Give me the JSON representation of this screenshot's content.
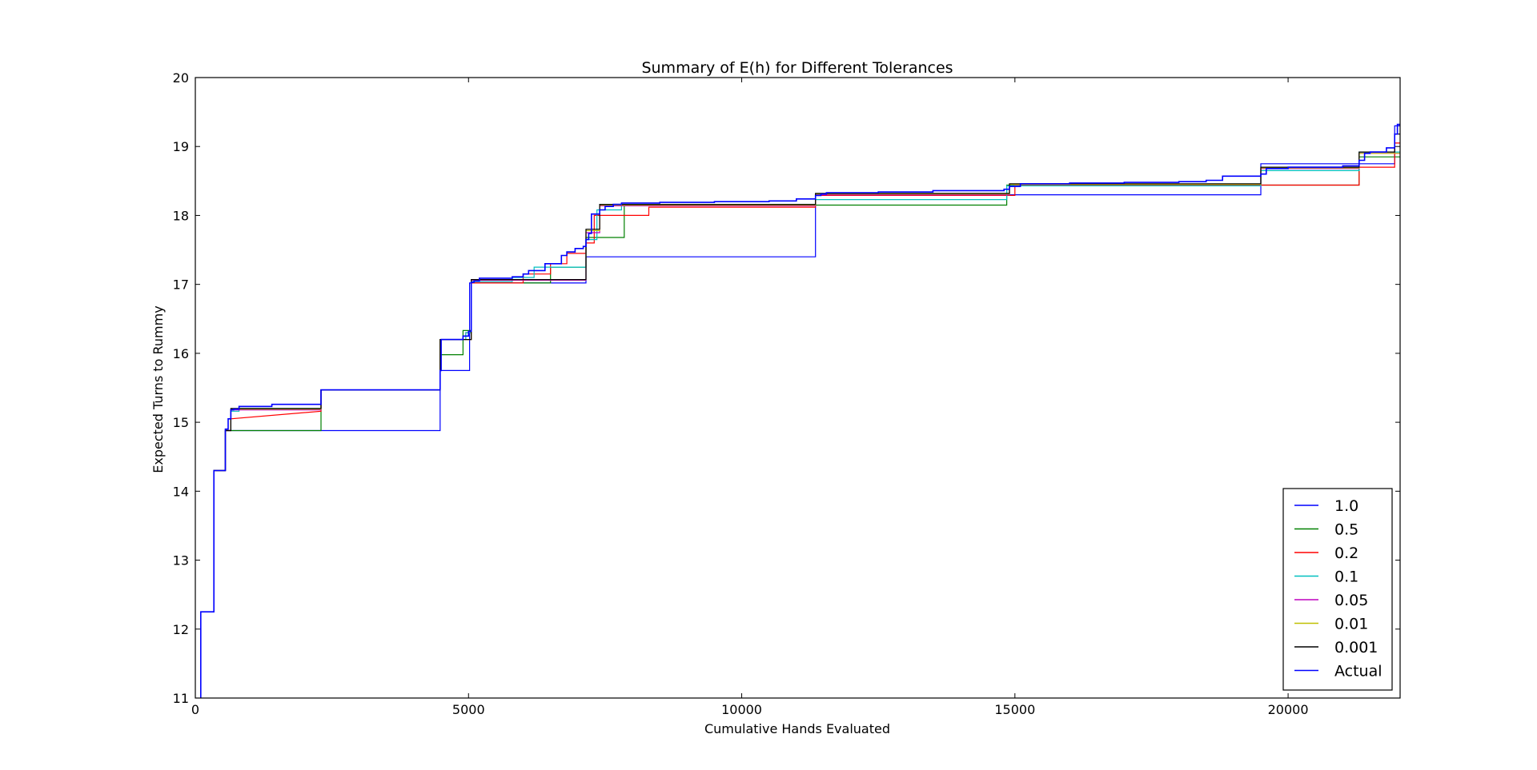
{
  "chart_data": {
    "type": "line",
    "title": "Summary of E(h) for Different Tolerances",
    "xlabel": "Cumulative Hands Evaluated",
    "ylabel": "Expected Turns to Rummy",
    "xlim": [
      0,
      22050
    ],
    "ylim": [
      11,
      20
    ],
    "xticks": [
      0,
      5000,
      10000,
      15000,
      20000
    ],
    "yticks": [
      11,
      12,
      13,
      14,
      15,
      16,
      17,
      18,
      19,
      20
    ],
    "legend_position": "lower-right",
    "grid": false,
    "step": "post",
    "series": [
      {
        "name": "1.0",
        "color": "#0000ff",
        "x": [
          100,
          100,
          340,
          340,
          550,
          550,
          4480,
          4480,
          5020,
          5020,
          7150,
          7150,
          11350,
          11350,
          19500,
          19500,
          21950,
          21950,
          22050
        ],
        "y": [
          11.0,
          12.25,
          12.25,
          14.3,
          14.3,
          14.88,
          14.88,
          15.75,
          15.75,
          17.02,
          17.02,
          17.4,
          17.4,
          18.3,
          18.3,
          18.75,
          18.75,
          19.3,
          19.3
        ]
      },
      {
        "name": "0.5",
        "color": "#008000",
        "x": [
          100,
          100,
          340,
          340,
          550,
          550,
          2300,
          2300,
          4480,
          4480,
          4900,
          4900,
          5050,
          5050,
          6500,
          6500,
          7150,
          7150,
          7850,
          7850,
          11350,
          11350,
          14850,
          14850,
          21300,
          21300,
          22050
        ],
        "y": [
          11.0,
          12.25,
          12.25,
          14.3,
          14.3,
          14.88,
          14.88,
          15.47,
          15.47,
          15.98,
          15.98,
          16.33,
          16.33,
          17.02,
          17.02,
          17.25,
          17.25,
          17.68,
          17.68,
          18.15,
          18.15,
          18.15,
          18.15,
          18.44,
          18.44,
          18.85,
          18.85
        ]
      },
      {
        "name": "0.2",
        "color": "#ff0000",
        "x": [
          100,
          100,
          340,
          340,
          550,
          550,
          650,
          650,
          2300,
          2300,
          4480,
          4480,
          4950,
          4950,
          5050,
          5050,
          5700,
          5700,
          6000,
          6000,
          6500,
          6500,
          6800,
          6800,
          7150,
          7150,
          7300,
          7300,
          8300,
          8300,
          11350,
          11350,
          15000,
          15000,
          21300,
          21300,
          21950,
          21950,
          22050
        ],
        "y": [
          11.0,
          12.25,
          12.25,
          14.3,
          14.3,
          14.88,
          14.88,
          15.05,
          15.16,
          15.47,
          15.47,
          16.2,
          16.2,
          16.3,
          16.3,
          17.02,
          17.02,
          17.02,
          17.02,
          17.15,
          17.15,
          17.3,
          17.3,
          17.45,
          17.45,
          17.6,
          17.6,
          18.0,
          18.0,
          18.12,
          18.12,
          18.29,
          18.29,
          18.44,
          18.44,
          18.7,
          18.7,
          19.05,
          19.05
        ]
      },
      {
        "name": "0.1",
        "color": "#00bfbf",
        "x": [
          100,
          100,
          340,
          340,
          550,
          550,
          650,
          650,
          800,
          800,
          2300,
          2300,
          4480,
          4480,
          4950,
          4950,
          5050,
          5050,
          5800,
          5800,
          6200,
          6200,
          7150,
          7150,
          7350,
          7350,
          7800,
          7800,
          11350,
          11350,
          14850,
          14850,
          19500,
          19500,
          21300,
          21300,
          22050
        ],
        "y": [
          11.0,
          12.25,
          12.25,
          14.3,
          14.3,
          14.88,
          14.88,
          15.16,
          15.16,
          15.2,
          15.2,
          15.47,
          15.47,
          16.2,
          16.2,
          16.3,
          16.3,
          17.04,
          17.04,
          17.1,
          17.1,
          17.25,
          17.25,
          17.65,
          17.65,
          18.08,
          18.08,
          18.16,
          18.16,
          18.23,
          18.23,
          18.43,
          18.43,
          18.65,
          18.65,
          18.92,
          18.92
        ]
      },
      {
        "name": "0.05",
        "color": "#bf00bf",
        "x": [
          100,
          100,
          340,
          340,
          550,
          550,
          650,
          650,
          2300,
          2300,
          4480,
          4480,
          5050,
          5050,
          7150,
          7150,
          7400,
          7400,
          11350,
          11350,
          14900,
          14900,
          19500,
          19500,
          21300,
          21300,
          22050
        ],
        "y": [
          11.0,
          12.25,
          12.25,
          14.3,
          14.3,
          14.88,
          14.88,
          15.18,
          15.18,
          15.47,
          15.47,
          16.2,
          16.2,
          17.06,
          17.06,
          17.75,
          17.75,
          18.14,
          18.14,
          18.3,
          18.3,
          18.45,
          18.45,
          18.68,
          18.68,
          18.9,
          18.9
        ]
      },
      {
        "name": "0.01",
        "color": "#bfbf00",
        "x": [
          100,
          100,
          340,
          340,
          550,
          550,
          650,
          650,
          2300,
          2300,
          4480,
          4480,
          5050,
          5050,
          7150,
          7150,
          7400,
          7400,
          11350,
          11350,
          14900,
          14900,
          19500,
          19500,
          21300,
          21300,
          22050
        ],
        "y": [
          11.0,
          12.25,
          12.25,
          14.3,
          14.3,
          14.88,
          14.88,
          15.19,
          15.19,
          15.47,
          15.47,
          16.2,
          16.2,
          17.07,
          17.07,
          17.78,
          17.78,
          18.15,
          18.15,
          18.31,
          18.31,
          18.45,
          18.45,
          18.69,
          18.69,
          18.9,
          18.9
        ]
      },
      {
        "name": "0.001",
        "color": "#000000",
        "x": [
          100,
          100,
          340,
          340,
          550,
          550,
          650,
          650,
          2300,
          2300,
          4480,
          4480,
          5050,
          5050,
          7150,
          7150,
          7400,
          7400,
          11350,
          11350,
          14900,
          14900,
          19500,
          19500,
          21300,
          21300,
          21950,
          21950,
          22050
        ],
        "y": [
          11.0,
          12.25,
          12.25,
          14.3,
          14.3,
          14.88,
          14.88,
          15.2,
          15.2,
          15.47,
          15.47,
          16.2,
          16.2,
          17.07,
          17.07,
          17.8,
          17.8,
          18.16,
          18.16,
          18.32,
          18.32,
          18.46,
          18.46,
          18.7,
          18.7,
          18.92,
          18.92,
          19.18,
          19.18
        ]
      },
      {
        "name": "Actual",
        "color": "#0000ff",
        "x": [
          100,
          100,
          340,
          340,
          550,
          550,
          600,
          600,
          650,
          650,
          700,
          700,
          800,
          800,
          1400,
          1400,
          2300,
          2300,
          4480,
          4480,
          4500,
          4500,
          4900,
          4900,
          5000,
          5000,
          5050,
          5050,
          5100,
          5100,
          5200,
          5200,
          5800,
          5800,
          6000,
          6000,
          6100,
          6100,
          6400,
          6400,
          6700,
          6700,
          6800,
          6800,
          6950,
          6950,
          7100,
          7100,
          7150,
          7150,
          7200,
          7200,
          7250,
          7250,
          7400,
          7400,
          7500,
          7500,
          7650,
          7650,
          7800,
          7800,
          8500,
          8500,
          9500,
          9500,
          10500,
          10500,
          11000,
          11000,
          11350,
          11350,
          11450,
          11450,
          11550,
          11550,
          12500,
          12500,
          13500,
          13500,
          14800,
          14800,
          14900,
          14900,
          15100,
          15100,
          16000,
          16000,
          17000,
          17000,
          18000,
          18000,
          18500,
          18500,
          18800,
          18800,
          19500,
          19500,
          19600,
          19600,
          20000,
          20000,
          21000,
          21000,
          21300,
          21300,
          21400,
          21400,
          21500,
          21500,
          21800,
          21800,
          21950,
          21950,
          22000,
          22000,
          22050
        ],
        "y": [
          11.0,
          12.25,
          12.25,
          14.3,
          14.3,
          14.9,
          14.9,
          15.05,
          15.05,
          15.18,
          15.18,
          15.19,
          15.19,
          15.23,
          15.23,
          15.26,
          15.26,
          15.47,
          15.47,
          15.75,
          15.75,
          16.2,
          16.2,
          16.25,
          16.25,
          16.32,
          16.32,
          17.03,
          17.03,
          17.05,
          17.05,
          17.09,
          17.09,
          17.11,
          17.11,
          17.15,
          17.15,
          17.2,
          17.2,
          17.3,
          17.3,
          17.42,
          17.42,
          17.47,
          17.47,
          17.52,
          17.52,
          17.55,
          17.55,
          17.65,
          17.65,
          17.74,
          17.74,
          18.02,
          18.02,
          18.08,
          18.08,
          18.13,
          18.13,
          18.16,
          18.16,
          18.18,
          18.18,
          18.19,
          18.19,
          18.2,
          18.2,
          18.21,
          18.21,
          18.24,
          18.24,
          18.29,
          18.29,
          18.31,
          18.31,
          18.33,
          18.33,
          18.34,
          18.34,
          18.36,
          18.36,
          18.38,
          18.38,
          18.42,
          18.42,
          18.46,
          18.46,
          18.47,
          18.47,
          18.48,
          18.48,
          18.49,
          18.49,
          18.51,
          18.51,
          18.57,
          18.57,
          18.6,
          18.6,
          18.68,
          18.68,
          18.7,
          18.7,
          18.72,
          18.72,
          18.8,
          18.8,
          18.9,
          18.9,
          18.92,
          18.92,
          18.98,
          18.98,
          19.18,
          19.18,
          19.32,
          19.32
        ]
      }
    ]
  }
}
